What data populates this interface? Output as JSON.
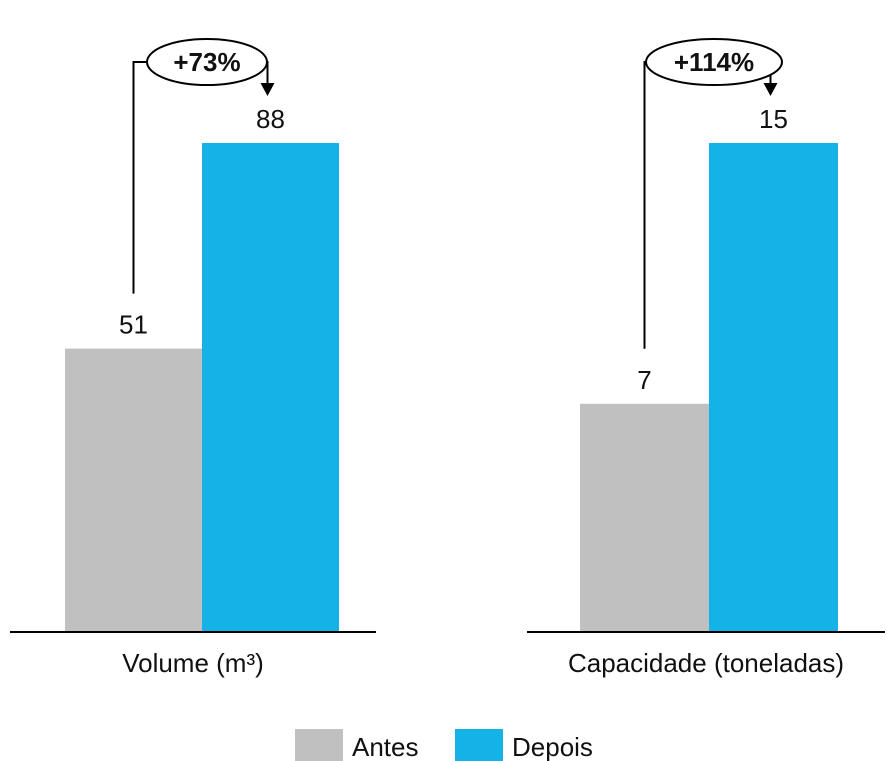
{
  "chart_data": [
    {
      "type": "bar",
      "categories": [
        "Volume (m³)"
      ],
      "series": [
        {
          "name": "Antes",
          "values": [
            51
          ]
        },
        {
          "name": "Depois",
          "values": [
            88
          ]
        }
      ],
      "annotation": "+73%",
      "ylim": [
        0,
        88
      ]
    },
    {
      "type": "bar",
      "categories": [
        "Capacidade (toneladas)"
      ],
      "series": [
        {
          "name": "Antes",
          "values": [
            7
          ]
        },
        {
          "name": "Depois",
          "values": [
            15
          ]
        }
      ],
      "annotation": "+114%",
      "ylim": [
        0,
        15
      ]
    }
  ],
  "legend": {
    "items": [
      {
        "label": "Antes",
        "color": "#c0c0c0"
      },
      {
        "label": "Depois",
        "color": "#15b2e8"
      }
    ],
    "placement": "bottom-center"
  },
  "colors": {
    "antes": "#c0c0c0",
    "depois": "#15b2e8",
    "axis": "#000000"
  }
}
